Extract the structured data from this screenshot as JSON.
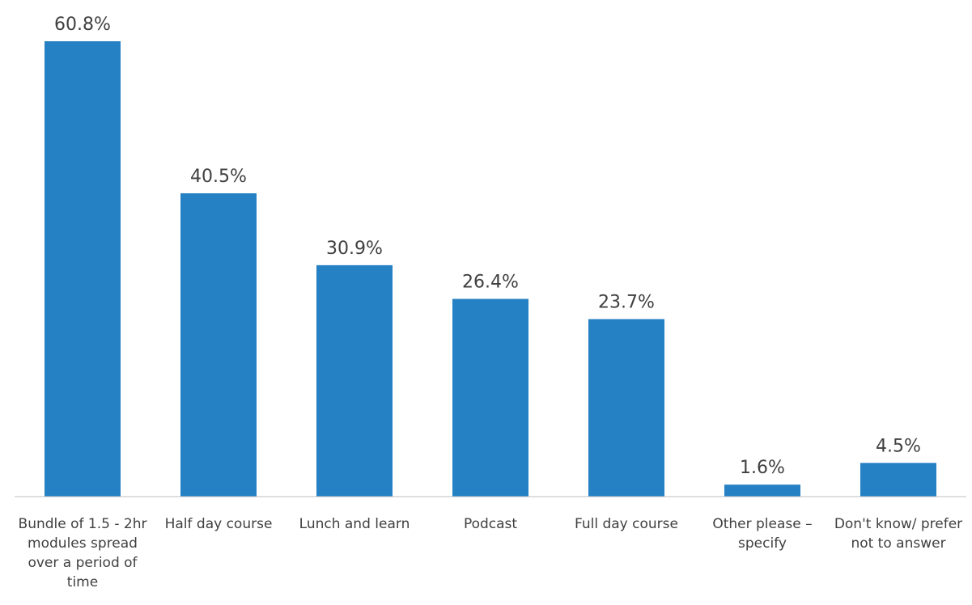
{
  "chart_data": {
    "type": "bar",
    "categories": [
      "Bundle of 1.5 - 2hr modules spread over a period of time",
      "Half day course",
      "Lunch and learn",
      "Podcast",
      "Full day course",
      "Other please – specify",
      "Don't know/ prefer not to answer"
    ],
    "values": [
      60.8,
      40.5,
      30.9,
      26.4,
      23.7,
      1.6,
      4.5
    ],
    "value_labels": [
      "60.8%",
      "40.5%",
      "30.9%",
      "26.4%",
      "23.7%",
      "1.6%",
      "4.5%"
    ],
    "color": "#2581c4"
  }
}
